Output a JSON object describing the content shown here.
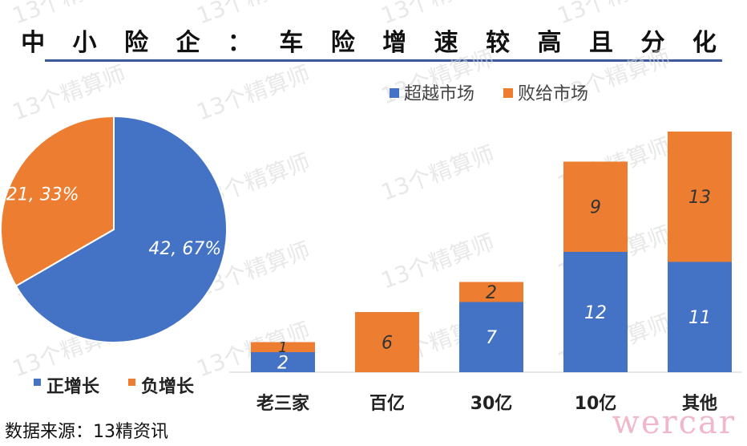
{
  "title": "中 小 险 企 ： 车 险 增 速 较 高 且 分 化",
  "source": "数据来源：13精资讯",
  "watermark_text": "13个精算师",
  "brand_text": "wercar",
  "chart_data": [
    {
      "type": "pie",
      "slices": [
        {
          "label": "正增长",
          "value": 42,
          "percent": "67%",
          "color": "#4472c4"
        },
        {
          "label": "负增长",
          "value": 21,
          "percent": "33%",
          "color": "#ed7d31"
        }
      ],
      "legend": [
        "正增长",
        "负增长"
      ],
      "legend_position": "bottom"
    },
    {
      "type": "bar",
      "stacked": true,
      "categories": [
        "老三家",
        "百亿",
        "30亿",
        "10亿",
        "其他"
      ],
      "series": [
        {
          "name": "超越市场",
          "values": [
            2,
            0,
            7,
            12,
            11
          ],
          "labels": [
            "2",
            "",
            "7",
            "12",
            "11"
          ],
          "color": "#4472c4"
        },
        {
          "name": "败给市场",
          "values": [
            1,
            6,
            2,
            9,
            13
          ],
          "labels": [
            "1",
            "6",
            "2",
            "9",
            "13"
          ],
          "color": "#ed7d31"
        }
      ],
      "legend_position": "top-right",
      "ylim": [
        0,
        24
      ],
      "grid": false
    }
  ]
}
